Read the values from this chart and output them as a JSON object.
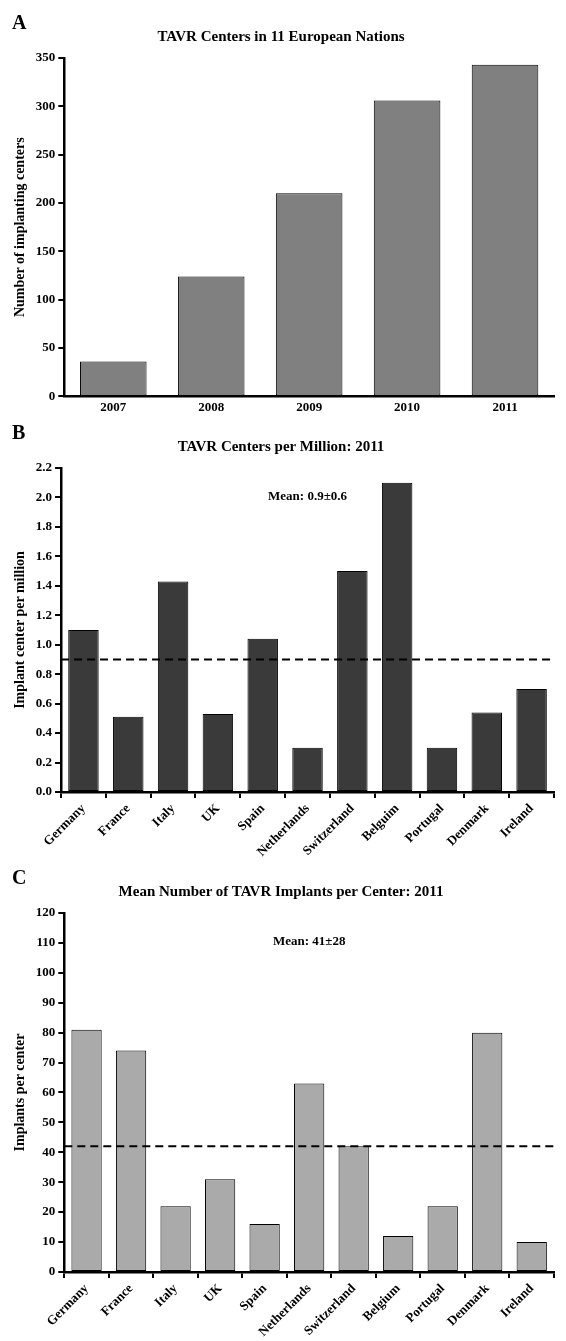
{
  "chart_data": [
    {
      "type": "bar",
      "title": "TAVR Centers in 11 European Nations",
      "ylabel": "Number of implanting centers",
      "annotations": [
        "A"
      ],
      "categories": [
        "2007",
        "2008",
        "2009",
        "2010",
        "2011"
      ],
      "values": [
        36,
        124,
        210,
        306,
        343
      ],
      "color": "#808080",
      "ylim": [
        0,
        350
      ],
      "yticks": [
        0,
        50,
        100,
        150,
        200,
        250,
        300,
        350
      ]
    },
    {
      "type": "bar",
      "title": "TAVR Centers per Million: 2011",
      "ylabel": "Implant center per million",
      "annotations": [
        "B",
        "Mean: 0.9±0.6"
      ],
      "categories": [
        "Germany",
        "France",
        "Italy",
        "UK",
        "Spain",
        "Netherlands",
        "Switzerland",
        "Belguim",
        "Portugal",
        "Denmark",
        "Ireland"
      ],
      "values": [
        1.1,
        0.51,
        1.43,
        0.53,
        1.04,
        0.3,
        1.5,
        2.1,
        0.3,
        0.54,
        0.7
      ],
      "color": "#3a3a3a",
      "ylim": [
        0,
        2.2
      ],
      "yticks": [
        {
          "value": 0,
          "label": "0.0"
        },
        0.2,
        0.4,
        0.6,
        0.8,
        {
          "value": 1,
          "label": "1.0"
        },
        1.2,
        1.4,
        1.6,
        1.8,
        {
          "value": 2,
          "label": "2.0"
        },
        2.2
      ],
      "ref_lines": [
        {
          "axis": "y",
          "value": 0.9,
          "color": "#000000",
          "line_style": "dashed"
        }
      ]
    },
    {
      "type": "bar",
      "title": "Mean Number of TAVR Implants per Center: 2011",
      "ylabel": "Implants per center",
      "annotations": [
        "C",
        "Mean: 41±28"
      ],
      "categories": [
        "Germany",
        "France",
        "Italy",
        "UK",
        "Spain",
        "Netherlands",
        "Switzerland",
        "Belgium",
        "Portugal",
        "Denmark",
        "Ireland"
      ],
      "values": [
        81,
        74,
        22,
        31,
        16,
        63,
        42,
        12,
        22,
        80,
        10
      ],
      "color": "#aaaaaa",
      "ylim": [
        0,
        120
      ],
      "yticks": [
        0,
        10,
        20,
        30,
        40,
        50,
        60,
        70,
        80,
        90,
        100,
        110,
        120
      ],
      "ref_lines": [
        {
          "axis": "y",
          "value": 42,
          "color": "#000000",
          "line_style": "dashed"
        }
      ]
    }
  ]
}
